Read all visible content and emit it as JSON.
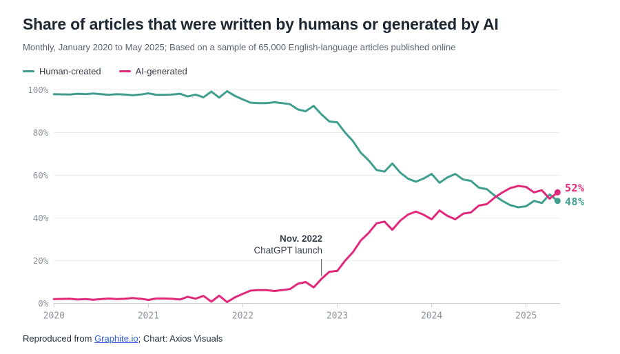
{
  "header": {
    "title": "Share of articles that were written by humans or generated by AI",
    "subtitle": "Monthly, January 2020 to May 2025; Based on a sample of 65,000 English-language articles published online"
  },
  "legend": [
    {
      "label": "Human-created",
      "color": "#3f9e8e"
    },
    {
      "label": "AI-generated",
      "color": "#e0297a"
    }
  ],
  "chart_data": {
    "type": "line",
    "title": "Share of articles that were written by humans or generated by AI",
    "x_start": "2020-01",
    "x_end": "2025-05",
    "x_tick_labels": [
      "2020",
      "2021",
      "2022",
      "2023",
      "2024",
      "2025"
    ],
    "y_tick_labels": [
      "0%",
      "20%",
      "40%",
      "60%",
      "80%",
      "100%"
    ],
    "ylim": [
      0,
      100
    ],
    "grid": "horizontal",
    "legend_position": "top-left",
    "series": [
      {
        "name": "Human-created",
        "color": "#3f9e8e",
        "end_label": "48%",
        "values": [
          98,
          97.9,
          97.8,
          98.2,
          98,
          98.3,
          98,
          97.7,
          98,
          97.8,
          97.5,
          97.8,
          98.4,
          97.7,
          97.7,
          97.8,
          98.2,
          96.9,
          97.8,
          96.5,
          99.2,
          96.4,
          99.4,
          97.2,
          95.5,
          94,
          93.8,
          93.8,
          94.2,
          93.8,
          93.3,
          90.8,
          90,
          92.5,
          88.5,
          85.2,
          84.8,
          80,
          76,
          70.5,
          67,
          62.5,
          61.7,
          65.5,
          61.3,
          58.4,
          57,
          58.5,
          60.6,
          56.5,
          59,
          60.6,
          58,
          57.4,
          54.2,
          53.5,
          50.5,
          48,
          46,
          45,
          45.5,
          48,
          47,
          51,
          48
        ]
      },
      {
        "name": "AI-generated",
        "color": "#e0297a",
        "end_label": "52%",
        "values": [
          2,
          2.1,
          2.2,
          1.8,
          2,
          1.7,
          2,
          2.3,
          2,
          2.2,
          2.5,
          2.2,
          1.6,
          2.3,
          2.3,
          2.2,
          1.8,
          3.1,
          2.2,
          3.5,
          0.8,
          3.6,
          0.6,
          2.8,
          4.5,
          6,
          6.2,
          6.2,
          5.8,
          6.2,
          6.7,
          9.2,
          10,
          7.5,
          11.5,
          14.8,
          15.2,
          20,
          24,
          29.5,
          33,
          37.5,
          38.3,
          34.5,
          38.7,
          41.6,
          43,
          41.5,
          39.4,
          43.5,
          41,
          39.4,
          42,
          42.6,
          45.8,
          46.5,
          49.5,
          52,
          54,
          55,
          54.5,
          52,
          53,
          49,
          52
        ]
      }
    ],
    "annotation": {
      "title": "Nov. 2022",
      "text": "ChatGPT launch",
      "x_month": "2022-11",
      "x_index": 34
    }
  },
  "footer": {
    "prefix": "Reproduced from ",
    "link": "Graphite.io",
    "suffix": "; Chart: Axios Visuals",
    "link_color": "#2f5fd8"
  }
}
